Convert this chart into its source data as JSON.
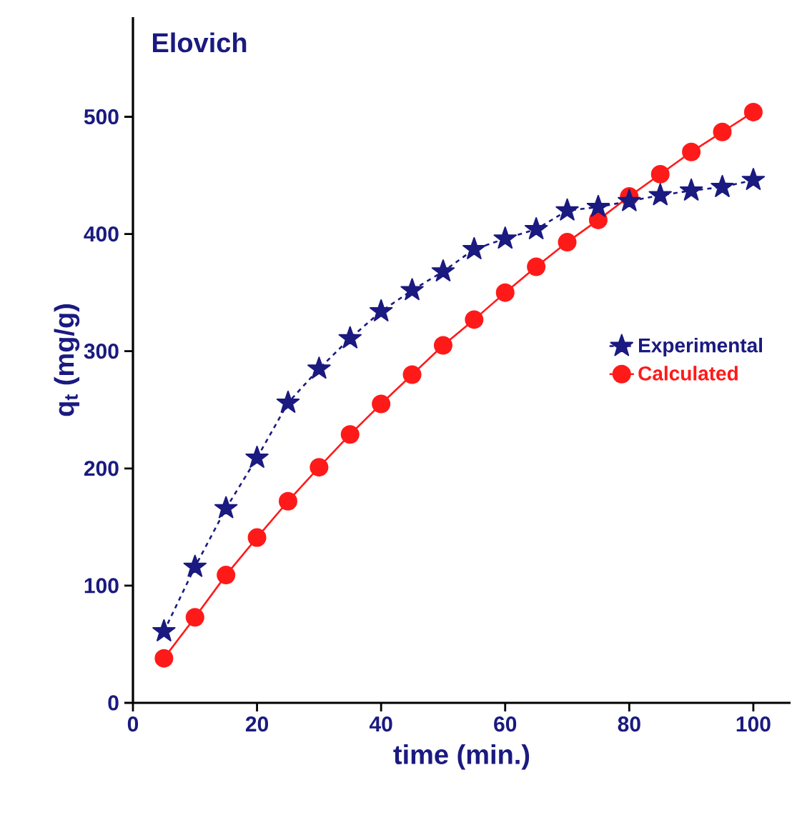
{
  "chart_data": {
    "type": "line",
    "title": "Elovich",
    "xlabel": "time (min.)",
    "ylabel": "q$_{t}$ (mg/g)",
    "x": [
      5,
      10,
      15,
      20,
      25,
      30,
      35,
      40,
      45,
      50,
      55,
      60,
      65,
      70,
      75,
      80,
      85,
      90,
      95,
      100
    ],
    "xlim": [
      0,
      106
    ],
    "xticks": [
      0,
      20,
      40,
      60,
      80,
      100
    ],
    "ylim": [
      0,
      585
    ],
    "yticks": [
      0,
      100,
      200,
      300,
      400,
      500
    ],
    "legend": "right",
    "grid": false,
    "series": [
      {
        "name": "Experimental",
        "color": "#1a1a80",
        "marker": "star",
        "line_style": "dashed",
        "values": [
          61,
          116,
          166,
          209,
          256,
          285,
          311,
          334,
          352,
          368,
          387,
          396,
          404,
          420,
          423,
          428,
          433,
          437,
          440,
          446
        ]
      },
      {
        "name": "Calculated",
        "color": "#ff1a1a",
        "marker": "circle",
        "line_style": "solid",
        "values": [
          38,
          73,
          109,
          141,
          172,
          201,
          229,
          255,
          280,
          305,
          327,
          350,
          372,
          393,
          412,
          432,
          451,
          470,
          487,
          504
        ]
      }
    ]
  }
}
